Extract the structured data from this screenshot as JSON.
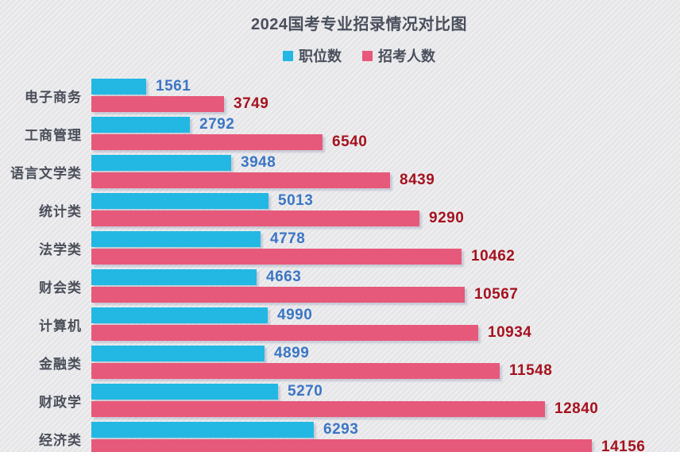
{
  "title": "2024国考专业招录情况对比图",
  "colors": {
    "background": "#e7e7e9",
    "title_text": "#4a4f5c",
    "category_text": "#4a4e59",
    "positions_bar": "#22b8e3",
    "recruits_bar": "#e7597a",
    "positions_value_text": "#3b76c4",
    "recruits_value_text": "#a5121e"
  },
  "legend": {
    "items": [
      {
        "label": "职位数",
        "color": "#22b8e3"
      },
      {
        "label": "招考人数",
        "color": "#e7597a"
      }
    ]
  },
  "chart_data": {
    "type": "bar",
    "orientation": "horizontal",
    "title": "2024国考专业招录情况对比图",
    "xlabel": "",
    "ylabel": "",
    "grid": false,
    "legend_position": "top-center",
    "xmax": 14156,
    "categories": [
      "电子商务",
      "工商管理",
      "语言文学类",
      "统计类",
      "法学类",
      "财会类",
      "计算机",
      "金融类",
      "财政学",
      "经济类"
    ],
    "series": [
      {
        "name": "职位数",
        "color": "#22b8e3",
        "value_label_color": "#3b76c4",
        "values": [
          1561,
          2792,
          3948,
          5013,
          4778,
          4663,
          4990,
          4899,
          5270,
          6293
        ]
      },
      {
        "name": "招考人数",
        "color": "#e7597a",
        "value_label_color": "#a5121e",
        "values": [
          3749,
          6540,
          8439,
          9290,
          10462,
          10567,
          10934,
          11548,
          12840,
          14156
        ]
      }
    ]
  }
}
